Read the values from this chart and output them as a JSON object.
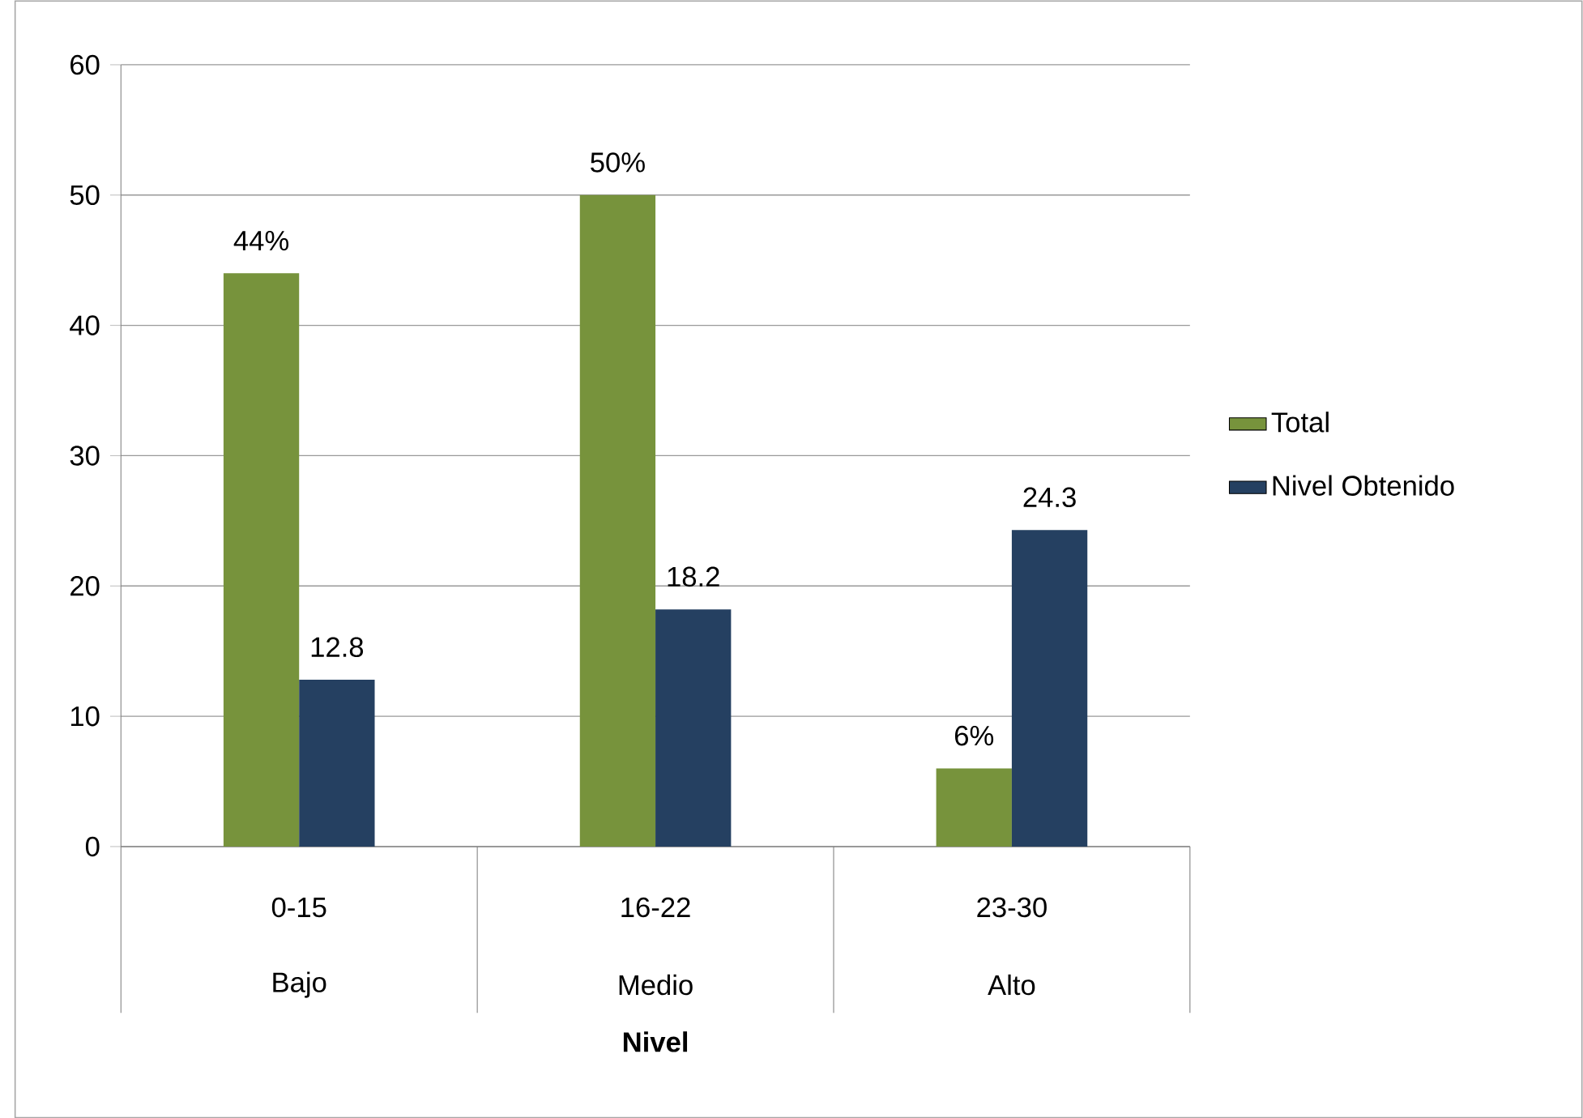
{
  "chart_data": {
    "type": "bar",
    "xlabel": "Nivel",
    "categories": [
      "0-15",
      "16-22",
      "23-30"
    ],
    "annotations": [
      "Bajo",
      "Medio",
      "Alto"
    ],
    "series": [
      {
        "name": "Total",
        "color": "#77933c",
        "values": [
          44,
          50,
          6
        ],
        "value_labels": [
          "44%",
          "50%",
          "6%"
        ]
      },
      {
        "name": "Nivel Obtenido",
        "color": "#254061",
        "values": [
          12.8,
          18.2,
          24.3
        ],
        "value_labels": [
          "12.8",
          "18.2",
          "24.3"
        ]
      }
    ],
    "ylim": [
      0,
      60
    ],
    "yticks": [
      0,
      10,
      20,
      30,
      40,
      50,
      60
    ],
    "grid": "y",
    "legend": "right"
  }
}
